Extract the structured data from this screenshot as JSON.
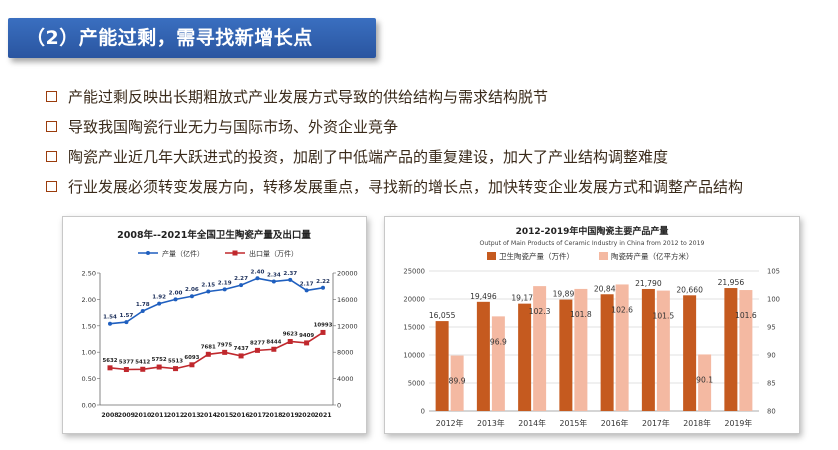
{
  "slide": {
    "title": "（2）产能过剩，需寻找新增长点",
    "bullets": [
      "产能过剩反映出长期粗放式产业发展方式导致的供给结构与需求结构脱节",
      "导致我国陶瓷行业无力与国际市场、外资企业竞争",
      "陶瓷产业近几年大跃进式的投资，加剧了中低端产品的重复建设，加大了产业结构调整难度",
      "行业发展必须转变发展方向，转移发展重点，寻找新的增长点，加快转变企业发展方式和调整产品结构"
    ]
  },
  "colors": {
    "title_bar": "#2f5fae",
    "bullet_box": "#9a3c0c",
    "chart1_series_a": "#1f5fbf",
    "chart1_series_b": "#c0282d",
    "chart2_series_a": "#c55a1f",
    "chart2_series_b": "#f4b9a2"
  },
  "chart_data": [
    {
      "type": "line",
      "title": "2008年--2021年全国卫生陶瓷产量及出口量",
      "x": [
        "2008",
        "2009",
        "2010",
        "2011",
        "2012",
        "2013",
        "2014",
        "2015",
        "2016",
        "2017",
        "2018",
        "2019",
        "2020",
        "2021"
      ],
      "series": [
        {
          "name": "产量（亿件）",
          "axis": "left",
          "values": [
            1.54,
            1.57,
            1.78,
            1.92,
            2.0,
            2.06,
            2.15,
            2.19,
            2.27,
            2.4,
            2.34,
            2.37,
            2.17,
            2.22
          ],
          "labels": [
            "1.54",
            "1.57",
            "1.78",
            "1.92",
            "2.00",
            "2.06",
            "2.15",
            "2.19",
            "2.27",
            "2.40",
            "2.34",
            "2.37",
            "2.17",
            "2.22"
          ]
        },
        {
          "name": "出口量（万件）",
          "axis": "right",
          "values": [
            5632,
            5377,
            5412,
            5752,
            5513,
            6093,
            7681,
            7975,
            7437,
            8277,
            8444,
            9623,
            9409,
            10993
          ],
          "labels": [
            "5632",
            "5377",
            "5412",
            "5752",
            "5513",
            "6093",
            "7681",
            "7975",
            "7437",
            "8277",
            "8444",
            "9623",
            "9409",
            "10993"
          ]
        }
      ],
      "y_left": {
        "ylim": [
          0,
          2.5
        ],
        "ticks": [
          "0.00",
          "0.50",
          "1.00",
          "1.50",
          "2.00",
          "2.50"
        ]
      },
      "y_right": {
        "ylim": [
          0,
          20000
        ],
        "ticks": [
          "0",
          "4000",
          "8000",
          "12000",
          "16000",
          "20000"
        ]
      },
      "legend": "top",
      "grid": false
    },
    {
      "type": "bar",
      "title": "2012-2019年中国陶瓷主要产品产量",
      "subtitle": "Output of Main Products of Ceramic Industry in China from 2012 to 2019",
      "categories": [
        "2012年",
        "2013年",
        "2014年",
        "2015年",
        "2016年",
        "2017年",
        "2018年",
        "2019年"
      ],
      "series": [
        {
          "name": "卫生陶瓷产量（万件）",
          "axis": "left",
          "values": [
            16055,
            19496,
            19170,
            19894,
            20845,
            21790,
            20660,
            21956
          ],
          "labels": [
            "16,055",
            "19,496",
            "19,170",
            "19,894",
            "20,845",
            "21,790",
            "20,660",
            "21,956"
          ]
        },
        {
          "name": "陶瓷砖产量（亿平方米）",
          "axis": "right",
          "values": [
            89.9,
            96.9,
            102.3,
            101.8,
            102.6,
            101.5,
            90.1,
            101.6
          ],
          "labels": [
            "89.9",
            "96.9",
            "102.3",
            "101.8",
            "102.6",
            "101.5",
            "90.1",
            "101.6"
          ]
        }
      ],
      "y_left": {
        "ylim": [
          0,
          25000
        ],
        "ticks": [
          "0",
          "5000",
          "10000",
          "15000",
          "20000",
          "25000"
        ]
      },
      "y_right": {
        "ylim": [
          80,
          105
        ],
        "ticks": [
          "80",
          "85",
          "90",
          "95",
          "100",
          "105"
        ]
      },
      "legend": "top",
      "grid": true
    }
  ]
}
